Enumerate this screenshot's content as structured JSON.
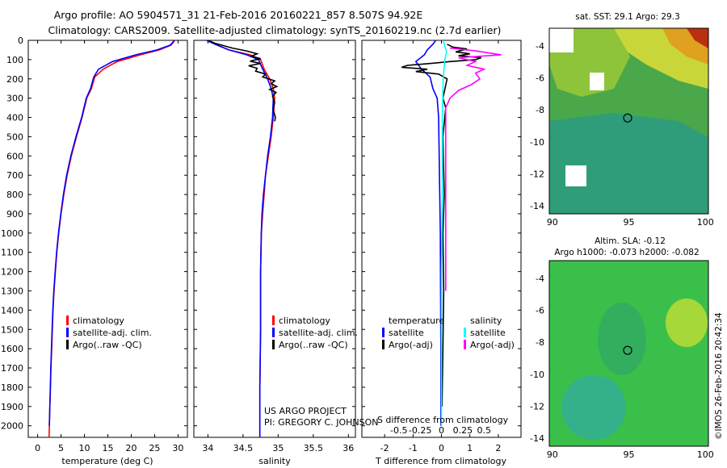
{
  "title_line1": "Argo profile: AO 5904571_31 21-Feb-2016 20160221_857 8.507S 94.92E",
  "title_line2": "Climatology: CARS2009. Satellite-adjusted climatology: synTS_20160219.nc (2.7d earlier)",
  "colors": {
    "clim": "#ff0000",
    "sat": "#0000ff",
    "argo": "#000000",
    "sat_s": "#00ffff",
    "argo_s": "#ff00ff"
  },
  "chart_data": [
    {
      "id": "temperature",
      "type": "line",
      "xlabel": "temperature (deg C)",
      "ylabel": "",
      "xlim": [
        -2,
        32
      ],
      "ylim": [
        2060,
        0
      ],
      "xticks": [
        "0",
        "5",
        "10",
        "15",
        "20",
        "25",
        "30"
      ],
      "yticks": [
        "0",
        "100",
        "200",
        "300",
        "400",
        "500",
        "600",
        "700",
        "800",
        "900",
        "1000",
        "1100",
        "1200",
        "1300",
        "1400",
        "1500",
        "1600",
        "1700",
        "1800",
        "1900",
        "2000"
      ],
      "legend": [
        "climatology",
        "satellite-adj. clim.",
        "Argo(..raw -QC)"
      ],
      "series": [
        {
          "name": "climatology",
          "color": "clim",
          "points": [
            [
              29.3,
              0
            ],
            [
              29,
              10
            ],
            [
              28.5,
              25
            ],
            [
              26,
              50
            ],
            [
              22,
              75
            ],
            [
              17,
              110
            ],
            [
              14,
              150
            ],
            [
              12.2,
              190
            ],
            [
              11.5,
              250
            ],
            [
              10.5,
              300
            ],
            [
              9.5,
              400
            ],
            [
              8.3,
              500
            ],
            [
              7.2,
              600
            ],
            [
              6.3,
              700
            ],
            [
              5.6,
              800
            ],
            [
              5,
              900
            ],
            [
              4.5,
              1000
            ],
            [
              4.1,
              1100
            ],
            [
              3.8,
              1200
            ],
            [
              3.5,
              1300
            ],
            [
              3.3,
              1400
            ],
            [
              3.15,
              1500
            ],
            [
              3,
              1600
            ],
            [
              2.85,
              1700
            ],
            [
              2.75,
              1800
            ],
            [
              2.6,
              1900
            ],
            [
              2.5,
              2000
            ],
            [
              2.45,
              2060
            ]
          ]
        },
        {
          "name": "satellite-adj. clim.",
          "color": "sat",
          "points": [
            [
              29.1,
              0
            ],
            [
              28.9,
              10
            ],
            [
              28.3,
              25
            ],
            [
              25.5,
              50
            ],
            [
              21,
              75
            ],
            [
              16,
              110
            ],
            [
              13,
              150
            ],
            [
              12,
              190
            ],
            [
              11.3,
              250
            ],
            [
              10.4,
              300
            ],
            [
              9.4,
              400
            ],
            [
              8.2,
              500
            ],
            [
              7.1,
              600
            ],
            [
              6.2,
              700
            ],
            [
              5.5,
              800
            ],
            [
              4.95,
              900
            ],
            [
              4.45,
              1000
            ],
            [
              4.05,
              1100
            ],
            [
              3.75,
              1200
            ],
            [
              3.45,
              1300
            ],
            [
              3.25,
              1400
            ],
            [
              3.1,
              1500
            ],
            [
              2.95,
              1600
            ],
            [
              2.82,
              1700
            ],
            [
              2.72,
              1800
            ],
            [
              2.6,
              1900
            ],
            [
              2.5,
              2000
            ]
          ]
        },
        {
          "name": "Argo(..raw -QC)",
          "color": "argo",
          "points": []
        }
      ]
    },
    {
      "id": "salinity",
      "type": "line",
      "xlabel": "salinity",
      "ylabel": "",
      "xlim": [
        33.8,
        36.1
      ],
      "ylim": [
        2060,
        0
      ],
      "xticks": [
        "34",
        "34.5",
        "35",
        "35.5",
        "36"
      ],
      "legend": [
        "climatology",
        "satellite-adj. clim.",
        "Argo(..raw -QC)"
      ],
      "annotation": [
        "US ARGO PROJECT",
        "PI: GREGORY C. JOHNSON"
      ],
      "series": [
        {
          "name": "climatology",
          "color": "clim",
          "points": [
            [
              34.0,
              0
            ],
            [
              34.1,
              20
            ],
            [
              34.3,
              50
            ],
            [
              34.6,
              75
            ],
            [
              34.75,
              100
            ],
            [
              34.8,
              150
            ],
            [
              34.88,
              200
            ],
            [
              34.93,
              250
            ],
            [
              34.95,
              300
            ],
            [
              34.93,
              400
            ],
            [
              34.9,
              500
            ],
            [
              34.86,
              600
            ],
            [
              34.82,
              700
            ],
            [
              34.8,
              800
            ],
            [
              34.78,
              900
            ],
            [
              34.76,
              1000
            ],
            [
              34.75,
              1200
            ],
            [
              34.75,
              1500
            ],
            [
              34.74,
              1800
            ],
            [
              34.74,
              2000
            ],
            [
              34.74,
              2060
            ]
          ]
        },
        {
          "name": "satellite-adj. clim.",
          "color": "sat",
          "points": [
            [
              33.98,
              0
            ],
            [
              34.1,
              20
            ],
            [
              34.3,
              50
            ],
            [
              34.55,
              75
            ],
            [
              34.72,
              100
            ],
            [
              34.78,
              150
            ],
            [
              34.85,
              200
            ],
            [
              34.9,
              250
            ],
            [
              34.93,
              300
            ],
            [
              34.92,
              400
            ],
            [
              34.89,
              500
            ],
            [
              34.85,
              600
            ],
            [
              34.82,
              700
            ],
            [
              34.79,
              800
            ],
            [
              34.77,
              900
            ],
            [
              34.76,
              1000
            ],
            [
              34.75,
              1200
            ],
            [
              34.75,
              1500
            ],
            [
              34.74,
              1800
            ],
            [
              34.74,
              2000
            ],
            [
              34.74,
              2060
            ]
          ]
        },
        {
          "name": "Argo(..raw -QC)",
          "color": "argo",
          "points": [
            [
              34.0,
              0
            ],
            [
              34.1,
              15
            ],
            [
              34.35,
              40
            ],
            [
              34.55,
              55
            ],
            [
              34.7,
              70
            ],
            [
              34.62,
              82
            ],
            [
              34.75,
              95
            ],
            [
              34.6,
              108
            ],
            [
              34.75,
              120
            ],
            [
              34.58,
              132
            ],
            [
              34.7,
              145
            ],
            [
              34.68,
              160
            ],
            [
              34.82,
              175
            ],
            [
              34.78,
              190
            ],
            [
              34.95,
              210
            ],
            [
              34.9,
              225
            ],
            [
              34.98,
              240
            ],
            [
              34.88,
              255
            ],
            [
              34.97,
              270
            ],
            [
              34.92,
              290
            ],
            [
              34.95,
              320
            ],
            [
              34.93,
              360
            ],
            [
              34.96,
              400
            ],
            [
              34.95,
              420
            ]
          ]
        }
      ]
    },
    {
      "id": "difference",
      "type": "line",
      "xlabel": "T difference from climatology",
      "xlabel_top": "S difference from climatology",
      "xlim": [
        -2.8,
        2.8
      ],
      "ylim": [
        2060,
        0
      ],
      "xticks": [
        "-2",
        "-1",
        "0",
        "1",
        "2"
      ],
      "xticks_s": [
        "-0.5",
        "-0.25",
        "0",
        "0.25",
        "0.5"
      ],
      "legend_headers": [
        "temperature",
        "salinity"
      ],
      "legend": [
        "satellite",
        "Argo(-adj)",
        "satellite",
        "Argo(-adj)"
      ],
      "series": [
        {
          "name": "T satellite",
          "color": "sat",
          "points": [
            [
              -0.2,
              0
            ],
            [
              -0.3,
              20
            ],
            [
              -0.5,
              50
            ],
            [
              -0.6,
              75
            ],
            [
              -0.9,
              110
            ],
            [
              -0.7,
              150
            ],
            [
              -0.4,
              190
            ],
            [
              -0.3,
              250
            ],
            [
              -0.15,
              300
            ],
            [
              -0.1,
              400
            ],
            [
              -0.08,
              600
            ],
            [
              -0.06,
              800
            ],
            [
              -0.04,
              1000
            ],
            [
              -0.03,
              1300
            ],
            [
              -0.02,
              1600
            ],
            [
              -0.02,
              2000
            ]
          ]
        },
        {
          "name": "T Argo(-adj)",
          "color": "argo",
          "points": [
            [
              0.2,
              20
            ],
            [
              0.4,
              35
            ],
            [
              0.9,
              45
            ],
            [
              0.5,
              60
            ],
            [
              1.0,
              70
            ],
            [
              0.6,
              80
            ],
            [
              1.4,
              90
            ],
            [
              1.2,
              100
            ],
            [
              0.3,
              110
            ],
            [
              -0.4,
              120
            ],
            [
              -1.2,
              130
            ],
            [
              -1.4,
              140
            ],
            [
              -0.5,
              150
            ],
            [
              -0.9,
              162
            ],
            [
              -0.1,
              175
            ],
            [
              0.2,
              200
            ],
            [
              0.05,
              300
            ],
            [
              0.15,
              350
            ],
            [
              0.05,
              500
            ],
            [
              0.1,
              800
            ],
            [
              0.05,
              1000
            ],
            [
              0.08,
              1300
            ],
            [
              0.05,
              1600
            ],
            [
              0.02,
              1900
            ]
          ]
        },
        {
          "name": "S satellite",
          "color": "sat_s",
          "points": [
            [
              0.02,
              0
            ],
            [
              0.04,
              30
            ],
            [
              0.06,
              60
            ],
            [
              0.04,
              100
            ],
            [
              0.02,
              200
            ],
            [
              0.01,
              400
            ],
            [
              0.01,
              800
            ],
            [
              0.0,
              1200
            ],
            [
              0.0,
              1600
            ],
            [
              0.0,
              2000
            ]
          ]
        },
        {
          "name": "S Argo(-adj)",
          "color": "argo_s",
          "points": [
            [
              0.1,
              40
            ],
            [
              0.4,
              55
            ],
            [
              0.7,
              75
            ],
            [
              0.2,
              90
            ],
            [
              0.4,
              110
            ],
            [
              0.3,
              130
            ],
            [
              0.5,
              150
            ],
            [
              0.4,
              170
            ],
            [
              0.45,
              200
            ],
            [
              0.35,
              230
            ],
            [
              0.2,
              260
            ],
            [
              0.1,
              300
            ],
            [
              0.05,
              350
            ],
            [
              0.05,
              500
            ],
            [
              0.05,
              800
            ],
            [
              0.05,
              1200
            ],
            [
              0.05,
              1300
            ]
          ]
        }
      ]
    },
    {
      "id": "sst_map",
      "type": "heatmap",
      "title": "sat. SST: 29.1  Argo: 29.3",
      "xlim": [
        89.8,
        100.2
      ],
      "ylim": [
        -14.5,
        -2.9
      ],
      "xticks": [
        "90",
        "95",
        "100"
      ],
      "yticks": [
        "-4",
        "-6",
        "-8",
        "-10",
        "-12",
        "-14"
      ],
      "marker": {
        "lon": 94.92,
        "lat": -8.507
      }
    },
    {
      "id": "sla_map",
      "type": "heatmap",
      "title": "Altim. SLA: -0.12",
      "subtitle": "Argo h1000: -0.073  h2000: -0.082",
      "xlim": [
        89.8,
        100.2
      ],
      "ylim": [
        -14.5,
        -2.9
      ],
      "xticks": [
        "90",
        "95",
        "100"
      ],
      "yticks": [
        "-4",
        "-6",
        "-8",
        "-10",
        "-12",
        "-14"
      ],
      "marker": {
        "lon": 94.92,
        "lat": -8.507
      }
    }
  ],
  "side_label": "©IMOS 26-Feb-2016 20:42:34"
}
